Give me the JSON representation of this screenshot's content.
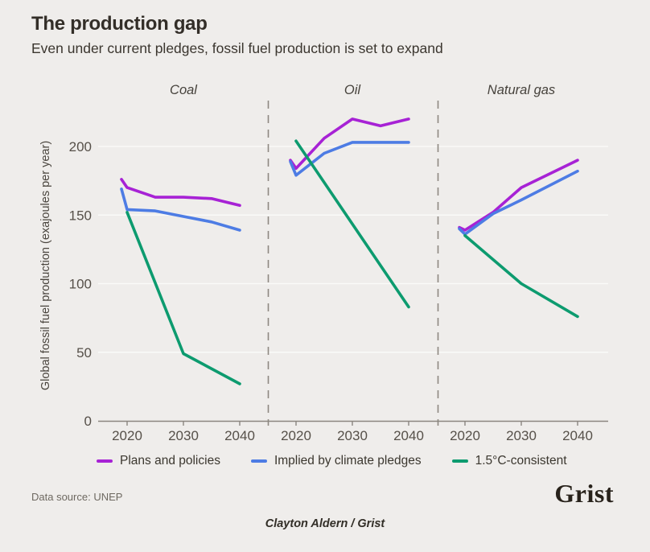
{
  "chart_data": {
    "type": "line",
    "title": "The production gap",
    "subtitle": "Even under current pledges, fossil fuel production is set to expand",
    "ylabel": "Global fossil fuel production (exajoules per year)",
    "ylabel_units": "exajoules per year",
    "y_ticks": [
      0,
      50,
      100,
      150,
      200
    ],
    "ylim": [
      0,
      235
    ],
    "x_ticks": [
      2020,
      2030,
      2040
    ],
    "x_range": [
      2019,
      2040
    ],
    "grid": true,
    "legend": {
      "position": "bottom",
      "items": [
        {
          "key": "plans",
          "label": "Plans and policies",
          "color": "#a722d5"
        },
        {
          "key": "pledges",
          "label": "Implied by climate pledges",
          "color": "#4d7ce4"
        },
        {
          "key": "consistent",
          "label": "1.5°C-consistent",
          "color": "#0d9b6f"
        }
      ]
    },
    "panels": [
      {
        "label": "Coal",
        "series": [
          {
            "key": "plans",
            "name": "Plans and policies",
            "color": "#a722d5",
            "points": [
              [
                2019,
                176
              ],
              [
                2020,
                170
              ],
              [
                2025,
                163
              ],
              [
                2030,
                163
              ],
              [
                2035,
                162
              ],
              [
                2040,
                157
              ]
            ]
          },
          {
            "key": "pledges",
            "name": "Implied by climate pledges",
            "color": "#4d7ce4",
            "points": [
              [
                2019,
                169
              ],
              [
                2020,
                154
              ],
              [
                2025,
                153
              ],
              [
                2030,
                149
              ],
              [
                2035,
                145
              ],
              [
                2040,
                139
              ]
            ]
          },
          {
            "key": "consistent",
            "name": "1.5°C-consistent",
            "color": "#0d9b6f",
            "points": [
              [
                2020,
                152
              ],
              [
                2030,
                49
              ],
              [
                2040,
                27
              ]
            ]
          }
        ]
      },
      {
        "label": "Oil",
        "series": [
          {
            "key": "plans",
            "name": "Plans and policies",
            "color": "#a722d5",
            "points": [
              [
                2019,
                190
              ],
              [
                2020,
                184
              ],
              [
                2025,
                206
              ],
              [
                2030,
                220
              ],
              [
                2035,
                215
              ],
              [
                2040,
                220
              ]
            ]
          },
          {
            "key": "pledges",
            "name": "Implied by climate pledges",
            "color": "#4d7ce4",
            "points": [
              [
                2019,
                189
              ],
              [
                2020,
                179
              ],
              [
                2025,
                195
              ],
              [
                2030,
                203
              ],
              [
                2035,
                203
              ],
              [
                2040,
                203
              ]
            ]
          },
          {
            "key": "consistent",
            "name": "1.5°C-consistent",
            "color": "#0d9b6f",
            "points": [
              [
                2020,
                204
              ],
              [
                2040,
                83
              ]
            ]
          }
        ]
      },
      {
        "label": "Natural gas",
        "series": [
          {
            "key": "plans",
            "name": "Plans and policies",
            "color": "#a722d5",
            "points": [
              [
                2019,
                141
              ],
              [
                2020,
                139
              ],
              [
                2025,
                152
              ],
              [
                2030,
                170
              ],
              [
                2040,
                190
              ]
            ]
          },
          {
            "key": "pledges",
            "name": "Implied by climate pledges",
            "color": "#4d7ce4",
            "points": [
              [
                2019,
                140
              ],
              [
                2020,
                136
              ],
              [
                2025,
                151
              ],
              [
                2030,
                161
              ],
              [
                2040,
                182
              ]
            ]
          },
          {
            "key": "consistent",
            "name": "1.5°C-consistent",
            "color": "#0d9b6f",
            "points": [
              [
                2020,
                135
              ],
              [
                2030,
                100
              ],
              [
                2040,
                76
              ]
            ]
          }
        ]
      }
    ]
  },
  "footer": {
    "source": "Data source: UNEP",
    "logo": "Grist",
    "credit": "Clayton Aldern / Grist"
  }
}
